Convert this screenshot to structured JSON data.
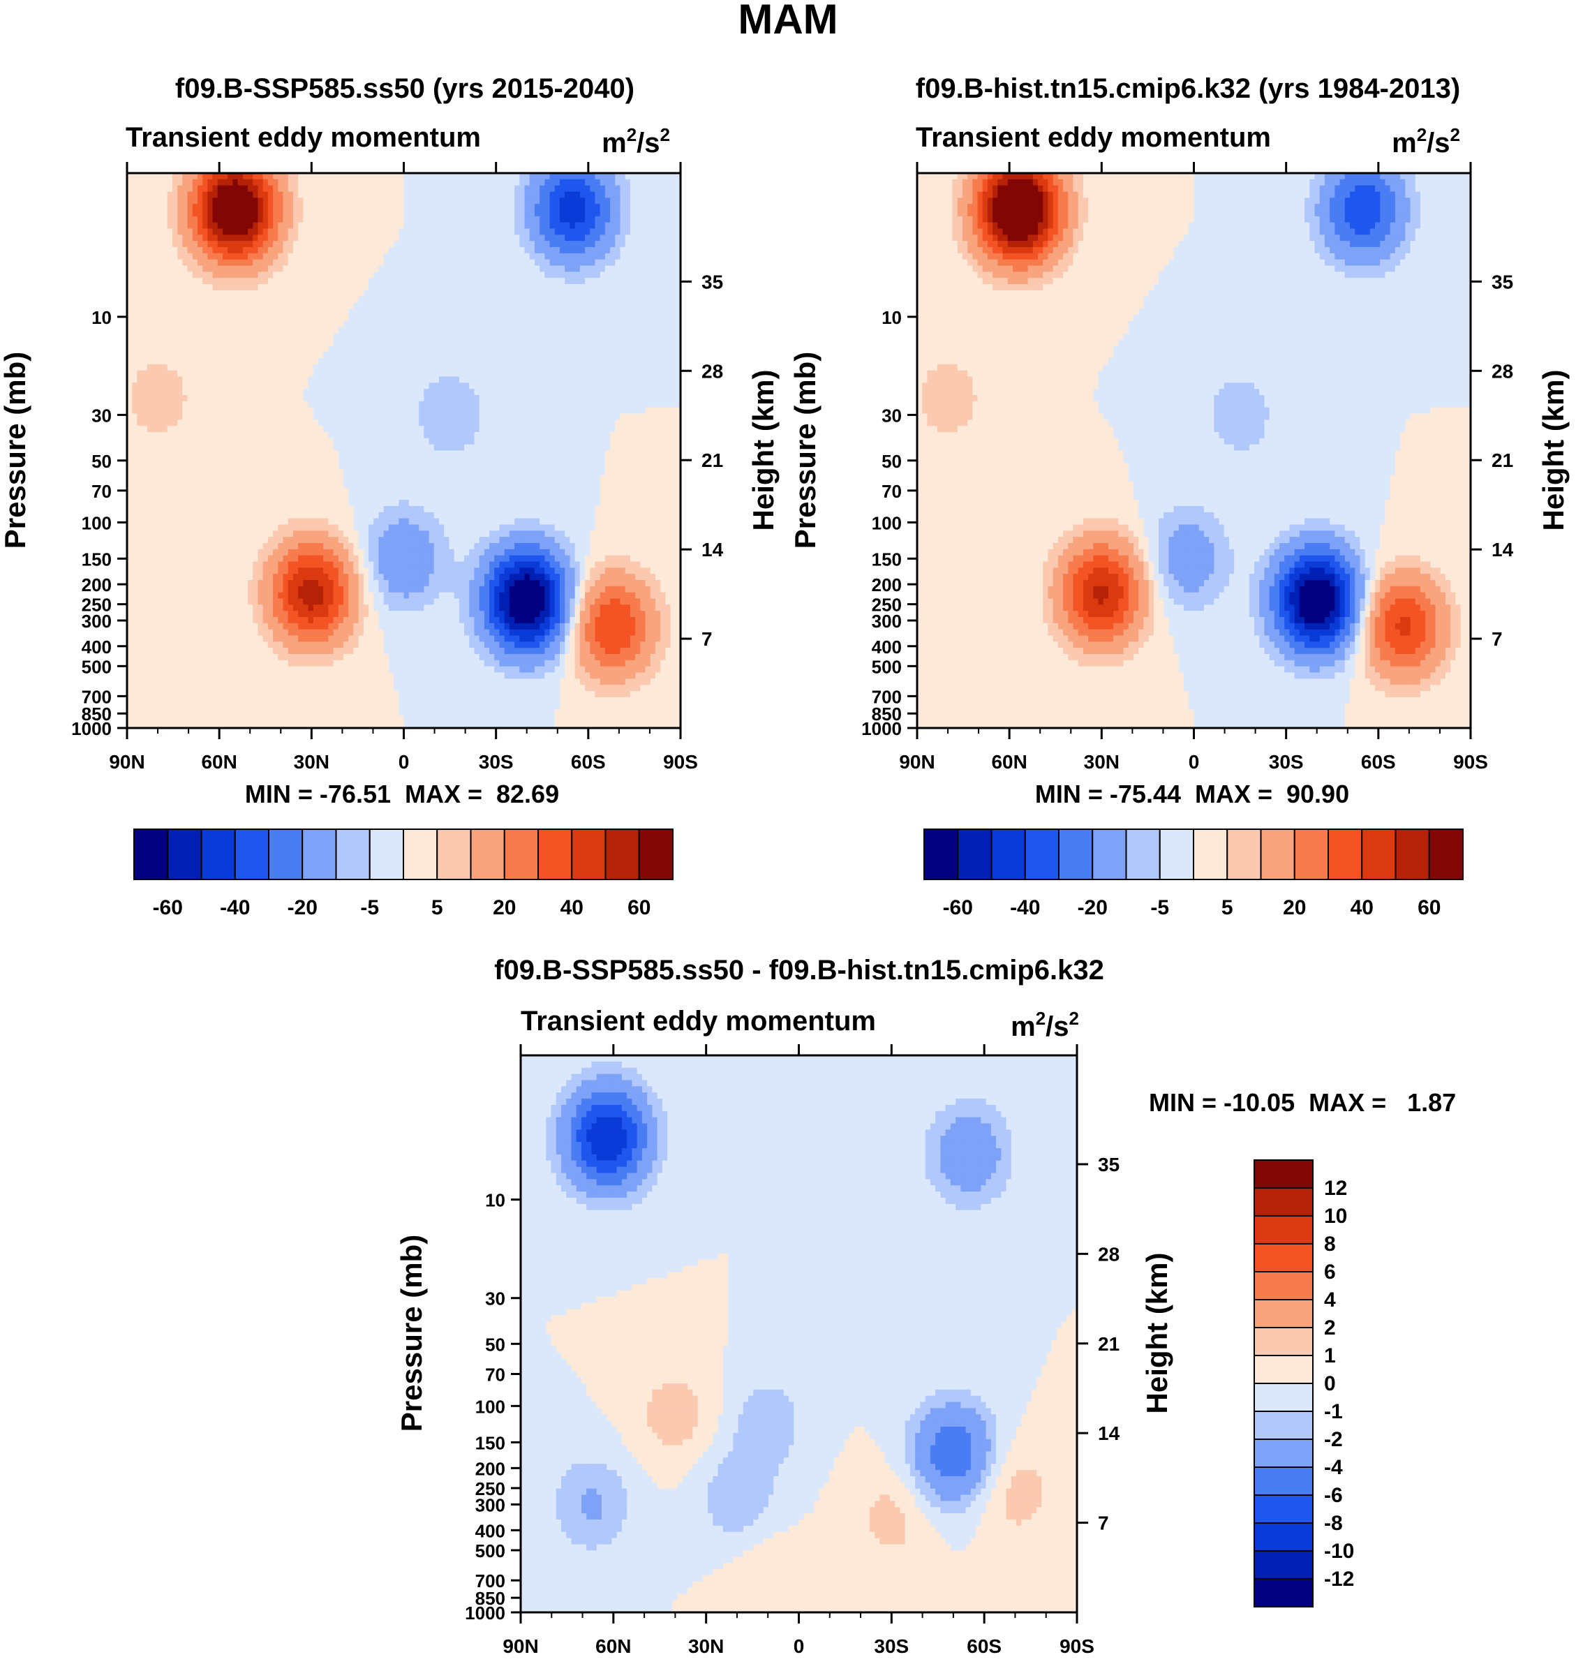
{
  "figure": {
    "main_title": "MAM",
    "colors": {
      "main_palette": [
        "#000080",
        "#0020b4",
        "#0a3ad8",
        "#1f57ee",
        "#4a7cf4",
        "#7da2f8",
        "#b0c8fb",
        "#dbe8fb",
        "#fde9d8",
        "#fbc9b0",
        "#f8a47e",
        "#f77b4c",
        "#f45424",
        "#db3a10",
        "#b52207",
        "#830606"
      ],
      "diff_palette": [
        "#000080",
        "#0020b4",
        "#0a3ad8",
        "#1f57ee",
        "#4a7cf4",
        "#7da2f8",
        "#b0c8fb",
        "#dbe8fb",
        "#fde9d8",
        "#fbc9b0",
        "#f8a47e",
        "#f77b4c",
        "#f45424",
        "#db3a10",
        "#b52207",
        "#830606"
      ]
    }
  },
  "chart_data": [
    {
      "type": "contour",
      "title": "f09.B-SSP585.ss50 (yrs 2015-2040)",
      "variable": "Transient eddy momentum",
      "units_base": "m",
      "units_exp1": "2",
      "units_mid": "/s",
      "units_exp2": "2",
      "xlabel": "",
      "ylabel": "Pressure (mb)",
      "y2label": "Height (km)",
      "x_ticks": [
        "90N",
        "60N",
        "30N",
        "0",
        "30S",
        "60S",
        "90S"
      ],
      "x_range": [
        90,
        -90
      ],
      "pressure_ticks": [
        10,
        30,
        50,
        70,
        100,
        150,
        200,
        250,
        300,
        400,
        500,
        700,
        850,
        1000
      ],
      "pressure_range": [
        2,
        1000
      ],
      "height_ticks": [
        35,
        28,
        21,
        14,
        7
      ],
      "stats": "MIN = -76.51  MAX =  82.69",
      "min": -76.51,
      "max": 82.69,
      "colorbar_labels": [
        "-60",
        "-40",
        "-20",
        "-5",
        "5",
        "20",
        "40",
        "60"
      ],
      "colorbar_levels": [
        -70,
        -60,
        -50,
        -40,
        -30,
        -20,
        -10,
        -5,
        0,
        5,
        10,
        20,
        30,
        40,
        50,
        60,
        70
      ],
      "features": [
        {
          "lat": 55,
          "p": 3,
          "value": 82
        },
        {
          "lat": 30,
          "p": 220,
          "value": 55
        },
        {
          "lat": 80,
          "p": 25,
          "value": 8
        },
        {
          "lat": -40,
          "p": 240,
          "value": -76
        },
        {
          "lat": -55,
          "p": 3,
          "value": -45
        },
        {
          "lat": -68,
          "p": 320,
          "value": 40
        },
        {
          "lat": 0,
          "p": 150,
          "value": -18
        },
        {
          "lat": -15,
          "p": 30,
          "value": -9
        }
      ]
    },
    {
      "type": "contour",
      "title": "f09.B-hist.tn15.cmip6.k32 (yrs 1984-2013)",
      "variable": "Transient eddy momentum",
      "units_base": "m",
      "units_exp1": "2",
      "units_mid": "/s",
      "units_exp2": "2",
      "xlabel": "",
      "ylabel": "Pressure (mb)",
      "y2label": "Height (km)",
      "x_ticks": [
        "90N",
        "60N",
        "30N",
        "0",
        "30S",
        "60S",
        "90S"
      ],
      "x_range": [
        90,
        -90
      ],
      "pressure_ticks": [
        10,
        30,
        50,
        70,
        100,
        150,
        200,
        250,
        300,
        400,
        500,
        700,
        850,
        1000
      ],
      "pressure_range": [
        2,
        1000
      ],
      "height_ticks": [
        35,
        28,
        21,
        14,
        7
      ],
      "stats": "MIN = -75.44  MAX =  90.90",
      "min": -75.44,
      "max": 90.9,
      "colorbar_labels": [
        "-60",
        "-40",
        "-20",
        "-5",
        "5",
        "20",
        "40",
        "60"
      ],
      "colorbar_levels": [
        -70,
        -60,
        -50,
        -40,
        -30,
        -20,
        -10,
        -5,
        0,
        5,
        10,
        20,
        30,
        40,
        50,
        60,
        70
      ],
      "features": [
        {
          "lat": 57,
          "p": 3,
          "value": 90
        },
        {
          "lat": 30,
          "p": 220,
          "value": 52
        },
        {
          "lat": 80,
          "p": 25,
          "value": 8
        },
        {
          "lat": -40,
          "p": 240,
          "value": -75
        },
        {
          "lat": -55,
          "p": 3,
          "value": -38
        },
        {
          "lat": -68,
          "p": 320,
          "value": 42
        },
        {
          "lat": 2,
          "p": 150,
          "value": -16
        },
        {
          "lat": -15,
          "p": 30,
          "value": -8
        }
      ]
    },
    {
      "type": "contour",
      "title": "f09.B-SSP585.ss50 - f09.B-hist.tn15.cmip6.k32",
      "variable": "Transient eddy momentum",
      "units_base": "m",
      "units_exp1": "2",
      "units_mid": "/s",
      "units_exp2": "2",
      "xlabel": "",
      "ylabel": "Pressure (mb)",
      "y2label": "Height (km)",
      "x_ticks": [
        "90N",
        "60N",
        "30N",
        "0",
        "30S",
        "60S",
        "90S"
      ],
      "x_range": [
        90,
        -90
      ],
      "pressure_ticks": [
        10,
        30,
        50,
        70,
        100,
        150,
        200,
        250,
        300,
        400,
        500,
        700,
        850,
        1000
      ],
      "pressure_range": [
        2,
        1000
      ],
      "height_ticks": [
        35,
        28,
        21,
        14,
        7
      ],
      "stats": "MIN = -10.05  MAX =   1.87",
      "min": -10.05,
      "max": 1.87,
      "colorbar_labels": [
        "12",
        "10",
        "8",
        "6",
        "4",
        "2",
        "1",
        "0",
        "-1",
        "-2",
        "-4",
        "-6",
        "-8",
        "-10",
        "-12"
      ],
      "colorbar_levels": [
        -14,
        -12,
        -10,
        -8,
        -6,
        -4,
        -2,
        -1,
        0,
        1,
        2,
        4,
        6,
        8,
        10,
        12,
        14
      ],
      "features": [
        {
          "lat": 62,
          "p": 5,
          "value": -10
        },
        {
          "lat": -50,
          "p": 170,
          "value": -5.5
        },
        {
          "lat": -55,
          "p": 6,
          "value": -3.5
        },
        {
          "lat": 40,
          "p": 110,
          "value": 1.6
        },
        {
          "lat": -70,
          "p": 260,
          "value": 1.6
        },
        {
          "lat": -30,
          "p": 350,
          "value": 1.4
        },
        {
          "lat": 20,
          "p": 280,
          "value": -1.8
        },
        {
          "lat": 67,
          "p": 300,
          "value": -2.2
        },
        {
          "lat": 10,
          "p": 120,
          "value": -1.6
        },
        {
          "lat": 10,
          "p": 650,
          "value": 0.8
        }
      ]
    }
  ]
}
